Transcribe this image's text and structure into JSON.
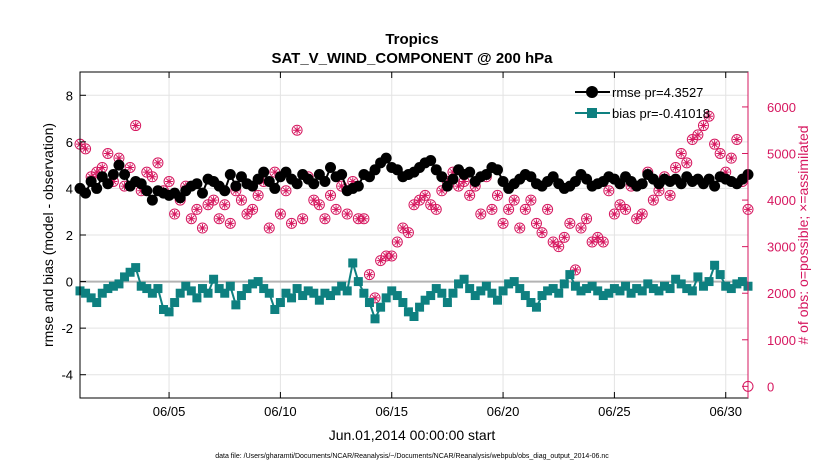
{
  "chart_data": {
    "type": "line",
    "title": "Tropics",
    "subtitle": "SAT_V_WIND_COMPONENT @ 200 hPa",
    "xlabel": "Jun.01,2014 00:00:00 start",
    "ylabel": "rmse and bias (model - observation)",
    "y2label": "# of obs: o=possible; ×=assimilated",
    "footnote": "data file: /Users/gharamti/Documents/NCAR/Reanalysis/~/Documents/NCAR/Reanalysis/webpub/obs_diag_output_2014-06.nc",
    "xlim": [
      1,
      31
    ],
    "ylim": [
      -5,
      9
    ],
    "y2lim": [
      -250,
      6750
    ],
    "x_ticks": [
      5,
      10,
      15,
      20,
      25,
      30
    ],
    "x_tick_labels": [
      "06/05",
      "06/10",
      "06/15",
      "06/20",
      "06/25",
      "06/30"
    ],
    "y_ticks": [
      -4,
      -2,
      0,
      2,
      4,
      6,
      8
    ],
    "y_tick_labels": [
      "-4",
      "-2",
      "0",
      "2",
      "4",
      "6",
      "8"
    ],
    "y2_ticks": [
      0,
      1000,
      2000,
      3000,
      4000,
      5000,
      6000
    ],
    "y2_tick_labels": [
      "0",
      "1000",
      "2000",
      "3000",
      "4000",
      "5000",
      "6000"
    ],
    "grid": true,
    "legend_position": "top-right",
    "colors": {
      "rmse": "#000000",
      "bias": "#0e8080",
      "obs": "#d6175f",
      "zero_line": "#b3b3b3"
    },
    "series": [
      {
        "name": "rmse",
        "legend": "rmse pr=4.3527",
        "values": [
          4.0,
          3.8,
          4.3,
          4.0,
          4.5,
          4.2,
          4.6,
          5.0,
          4.6,
          4.1,
          4.3,
          4.2,
          3.9,
          3.5,
          3.9,
          3.8,
          3.7,
          3.8,
          3.6,
          3.9,
          4.1,
          4.2,
          3.8,
          4.4,
          4.3,
          4.1,
          3.9,
          4.6,
          4.1,
          4.5,
          4.2,
          4.1,
          4.4,
          4.7,
          4.3,
          4.0,
          4.5,
          4.7,
          4.4,
          4.2,
          4.6,
          4.4,
          4.2,
          4.6,
          4.3,
          4.9,
          4.5,
          4.6,
          3.9,
          4.0,
          4.1,
          4.6,
          4.5,
          4.8,
          5.1,
          5.3,
          4.9,
          4.8,
          4.5,
          4.6,
          4.7,
          4.9,
          5.1,
          5.2,
          4.8,
          4.5,
          4.1,
          4.4,
          4.8,
          4.6,
          4.7,
          4.3,
          4.5,
          4.6,
          4.9,
          4.8,
          4.3,
          4.0,
          4.2,
          4.4,
          4.6,
          4.5,
          4.2,
          4.1,
          4.3,
          4.5,
          4.2,
          4.0,
          4.1,
          4.3,
          4.6,
          4.4,
          4.1,
          4.2,
          4.3,
          4.5,
          4.4,
          4.2,
          4.5,
          4.3,
          4.1,
          4.2,
          4.6,
          4.4,
          4.2,
          4.4,
          4.3,
          4.4,
          4.2,
          4.5,
          4.3,
          4.4,
          4.2,
          4.4,
          4.1,
          4.5,
          4.4,
          4.3,
          4.2,
          4.4,
          4.6
        ]
      },
      {
        "name": "bias",
        "legend": "bias pr=-0.41018",
        "values": [
          -0.4,
          -0.5,
          -0.7,
          -0.9,
          -0.5,
          -0.3,
          -0.2,
          -0.1,
          0.2,
          0.4,
          0.6,
          -0.2,
          -0.3,
          -0.5,
          -0.3,
          -1.2,
          -1.3,
          -0.9,
          -0.5,
          -0.2,
          -0.4,
          -0.7,
          -0.3,
          -0.5,
          0.1,
          -0.3,
          -0.5,
          -0.2,
          -1.0,
          -0.6,
          -0.3,
          -0.1,
          0.0,
          -0.3,
          -0.5,
          -1.2,
          -0.9,
          -0.5,
          -0.7,
          -0.3,
          -0.6,
          -0.4,
          -0.5,
          -0.8,
          -0.5,
          -0.6,
          -0.4,
          -0.2,
          -0.4,
          0.8,
          0.0,
          -0.5,
          -0.9,
          -1.6,
          -1.1,
          -0.7,
          -0.4,
          -0.6,
          -0.9,
          -1.3,
          -1.5,
          -1.1,
          -0.8,
          -0.6,
          -0.3,
          -0.5,
          -0.9,
          -0.5,
          -0.1,
          0.1,
          -0.3,
          -0.6,
          -0.4,
          -0.2,
          -0.5,
          -0.8,
          -0.4,
          -0.1,
          0.0,
          -0.3,
          -0.6,
          -0.9,
          -1.1,
          -0.6,
          -0.4,
          -0.3,
          -0.5,
          -0.1,
          0.3,
          -0.2,
          -0.4,
          -0.3,
          -0.2,
          -0.4,
          -0.6,
          -0.5,
          -0.3,
          -0.4,
          -0.2,
          -0.5,
          -0.3,
          -0.4,
          -0.1,
          -0.3,
          -0.4,
          -0.2,
          -0.3,
          0.1,
          -0.1,
          -0.3,
          -0.4,
          0.2,
          -0.2,
          0.0,
          0.7,
          0.3,
          -0.2,
          -0.3,
          -0.1,
          0.0,
          -0.2
        ]
      },
      {
        "name": "obs_count",
        "legend": "# of obs",
        "values": [
          5200,
          5100,
          4500,
          4600,
          4700,
          5000,
          4400,
          4900,
          4300,
          4700,
          5600,
          4200,
          4600,
          4500,
          4800,
          4200,
          4400,
          3700,
          4000,
          4300,
          3600,
          3800,
          3400,
          3900,
          4000,
          3600,
          3900,
          3500,
          4200,
          4000,
          3700,
          3800,
          4100,
          4400,
          3400,
          4600,
          3700,
          4200,
          3500,
          5500,
          3600,
          4500,
          4000,
          3900,
          3600,
          4100,
          3800,
          4300,
          3700,
          4400,
          3600,
          3600,
          2400,
          1900,
          2700,
          2800,
          2800,
          3100,
          3400,
          3300,
          3900,
          4000,
          4100,
          3900,
          3800,
          4200,
          4400,
          4600,
          4300,
          4400,
          4100,
          4300,
          3700,
          4500,
          3800,
          4100,
          3500,
          3800,
          4000,
          3400,
          3800,
          4000,
          3500,
          3300,
          3800,
          3100,
          3000,
          3200,
          3500,
          2500,
          3400,
          3600,
          3100,
          3200,
          3100,
          4200,
          3700,
          3900,
          3800,
          4300,
          3600,
          3700,
          4600,
          4000,
          4200,
          4500,
          4100,
          4700,
          5000,
          4800,
          5300,
          5400,
          5600,
          5800,
          5200,
          5000,
          4600,
          4900,
          5300,
          4400,
          3800
        ]
      }
    ]
  }
}
